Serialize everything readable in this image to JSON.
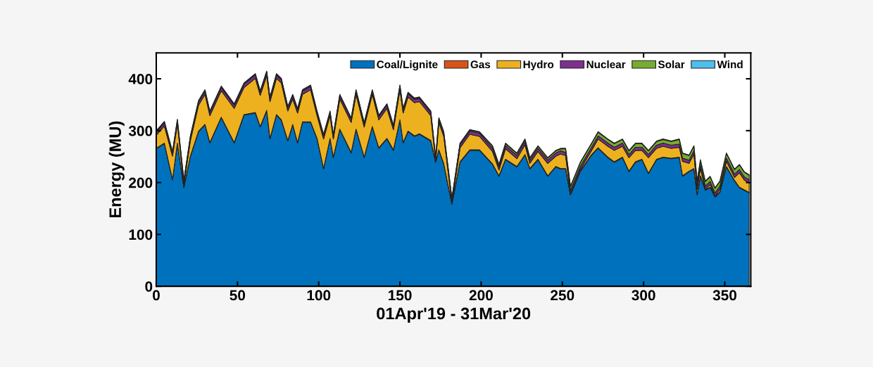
{
  "chart_data": {
    "type": "area",
    "stacked": true,
    "xlabel": "01Apr'19 - 31Mar'20",
    "ylabel": "Energy (MU)",
    "x": [
      0,
      5,
      10,
      13,
      17,
      21,
      26,
      30,
      33,
      40,
      48,
      54,
      61,
      64,
      68,
      70,
      74,
      77,
      81,
      84,
      87,
      90,
      95,
      99,
      103,
      107,
      109,
      113,
      120,
      123,
      128,
      133,
      137,
      142,
      146,
      150,
      152,
      155,
      159,
      162,
      169,
      172,
      174,
      177,
      182,
      187,
      193,
      199,
      207,
      211,
      215,
      222,
      227,
      230,
      235,
      241,
      246,
      249,
      252,
      255,
      261,
      268,
      272,
      278,
      282,
      287,
      291,
      295,
      299,
      303,
      308,
      312,
      317,
      322,
      324,
      328,
      331,
      333,
      335,
      338,
      341,
      344,
      347,
      351,
      356,
      359,
      362,
      365
    ],
    "series": [
      {
        "name": "Coal/Lignite",
        "color": "#0072bd",
        "values": [
          265,
          275,
          205,
          275,
          190,
          250,
          298,
          311,
          276,
          325,
          276,
          330,
          334,
          307,
          338,
          284,
          330,
          320,
          280,
          311,
          276,
          316,
          316,
          284,
          226,
          284,
          248,
          302,
          257,
          302,
          248,
          307,
          266,
          284,
          262,
          320,
          276,
          298,
          289,
          293,
          280,
          239,
          262,
          235,
          158,
          239,
          262,
          262,
          235,
          212,
          244,
          230,
          253,
          226,
          244,
          212,
          230,
          226,
          226,
          176,
          221,
          253,
          266,
          248,
          239,
          248,
          221,
          239,
          244,
          217,
          244,
          248,
          246,
          248,
          212,
          221,
          226,
          176,
          212,
          185,
          190,
          172,
          181,
          230,
          203,
          190,
          185,
          180
        ]
      },
      {
        "name": "Gas",
        "color": "#d95319",
        "values": [
          1,
          1,
          1,
          1,
          1,
          1,
          1,
          1,
          1,
          1,
          1,
          1,
          1,
          1,
          1,
          1,
          1,
          1,
          1,
          1,
          1,
          1,
          1,
          1,
          1,
          1,
          1,
          1,
          1,
          1,
          1,
          1,
          1,
          1,
          1,
          1,
          1,
          1,
          1,
          1,
          1,
          1,
          1,
          1,
          1,
          1,
          1,
          1,
          1,
          1,
          1,
          1,
          1,
          1,
          1,
          1,
          1,
          1,
          1,
          1,
          1,
          1,
          1,
          1,
          1,
          1,
          1,
          1,
          1,
          1,
          1,
          1,
          1,
          1,
          1,
          1,
          1,
          1,
          1,
          1,
          1,
          1,
          1,
          1,
          1,
          1,
          1,
          1
        ]
      },
      {
        "name": "Hydro",
        "color": "#edb120",
        "values": [
          25,
          33,
          45,
          37,
          5,
          30,
          50,
          58,
          52,
          51,
          66,
          52,
          66,
          60,
          67,
          71,
          70,
          71,
          57,
          49,
          57,
          53,
          62,
          44,
          57,
          44,
          35,
          58,
          58,
          67,
          58,
          62,
          54,
          58,
          39,
          58,
          57,
          66,
          64,
          62,
          48,
          1,
          53,
          53,
          2,
          27,
          30,
          26,
          24,
          11,
          20,
          15,
          19,
          10,
          15,
          24,
          20,
          28,
          25,
          2,
          3,
          8,
          17,
          21,
          22,
          21,
          26,
          22,
          17,
          30,
          21,
          21,
          19,
          19,
          28,
          15,
          28,
          10,
          15,
          1,
          5,
          1,
          5,
          10,
          6,
          28,
          19,
          18
        ]
      },
      {
        "name": "Nuclear",
        "color": "#7e2f8e",
        "values": [
          6,
          6,
          6,
          6,
          6,
          6,
          6,
          6,
          6,
          6,
          6,
          6,
          6,
          6,
          6,
          6,
          6,
          6,
          6,
          6,
          6,
          6,
          6,
          6,
          6,
          6,
          6,
          6,
          6,
          6,
          6,
          6,
          6,
          6,
          6,
          6,
          6,
          6,
          6,
          6,
          6,
          6,
          6,
          6,
          6,
          6,
          6,
          6,
          6,
          6,
          6,
          6,
          6,
          6,
          6,
          6,
          6,
          6,
          6,
          6,
          6,
          6,
          6,
          6,
          6,
          6,
          6,
          6,
          6,
          6,
          6,
          6,
          6,
          6,
          6,
          6,
          6,
          6,
          6,
          6,
          6,
          6,
          6,
          6,
          6,
          6,
          6,
          6
        ]
      },
      {
        "name": "Solar",
        "color": "#77ac30",
        "values": [
          2,
          2,
          2,
          2,
          2,
          2,
          2,
          2,
          2,
          2,
          2,
          2,
          2,
          2,
          2,
          2,
          2,
          2,
          2,
          2,
          2,
          2,
          2,
          2,
          2,
          2,
          2,
          2,
          2,
          2,
          2,
          2,
          2,
          2,
          2,
          2,
          2,
          2,
          2,
          2,
          2,
          2,
          2,
          2,
          2,
          2,
          2,
          2,
          4,
          4,
          4,
          4,
          4,
          4,
          4,
          4,
          4,
          4,
          7,
          7,
          7,
          7,
          7,
          7,
          7,
          7,
          7,
          7,
          7,
          7,
          7,
          7,
          7,
          9,
          9,
          9,
          9,
          9,
          9,
          9,
          9,
          9,
          9,
          9,
          9,
          9,
          9,
          9
        ]
      },
      {
        "name": "Wind",
        "color": "#4dbeee",
        "values": [
          1,
          1,
          1,
          1,
          1,
          1,
          1,
          1,
          1,
          1,
          1,
          1,
          1,
          1,
          1,
          1,
          1,
          1,
          1,
          1,
          1,
          1,
          1,
          1,
          1,
          1,
          1,
          1,
          1,
          1,
          1,
          1,
          1,
          1,
          1,
          1,
          1,
          1,
          1,
          1,
          1,
          1,
          1,
          1,
          1,
          1,
          1,
          1,
          1,
          1,
          1,
          1,
          1,
          1,
          1,
          1,
          1,
          1,
          1,
          1,
          1,
          1,
          1,
          1,
          1,
          1,
          1,
          1,
          1,
          1,
          1,
          1,
          1,
          1,
          1,
          1,
          1,
          1,
          1,
          1,
          1,
          1,
          1,
          1,
          1,
          1,
          1,
          1
        ]
      }
    ],
    "xlim": [
      0,
      366
    ],
    "ylim": [
      0,
      450
    ],
    "xticks": [
      0,
      50,
      100,
      150,
      200,
      250,
      300,
      350
    ],
    "yticks": [
      0,
      100,
      200,
      300,
      400
    ],
    "legend": "top right",
    "grid": false
  }
}
